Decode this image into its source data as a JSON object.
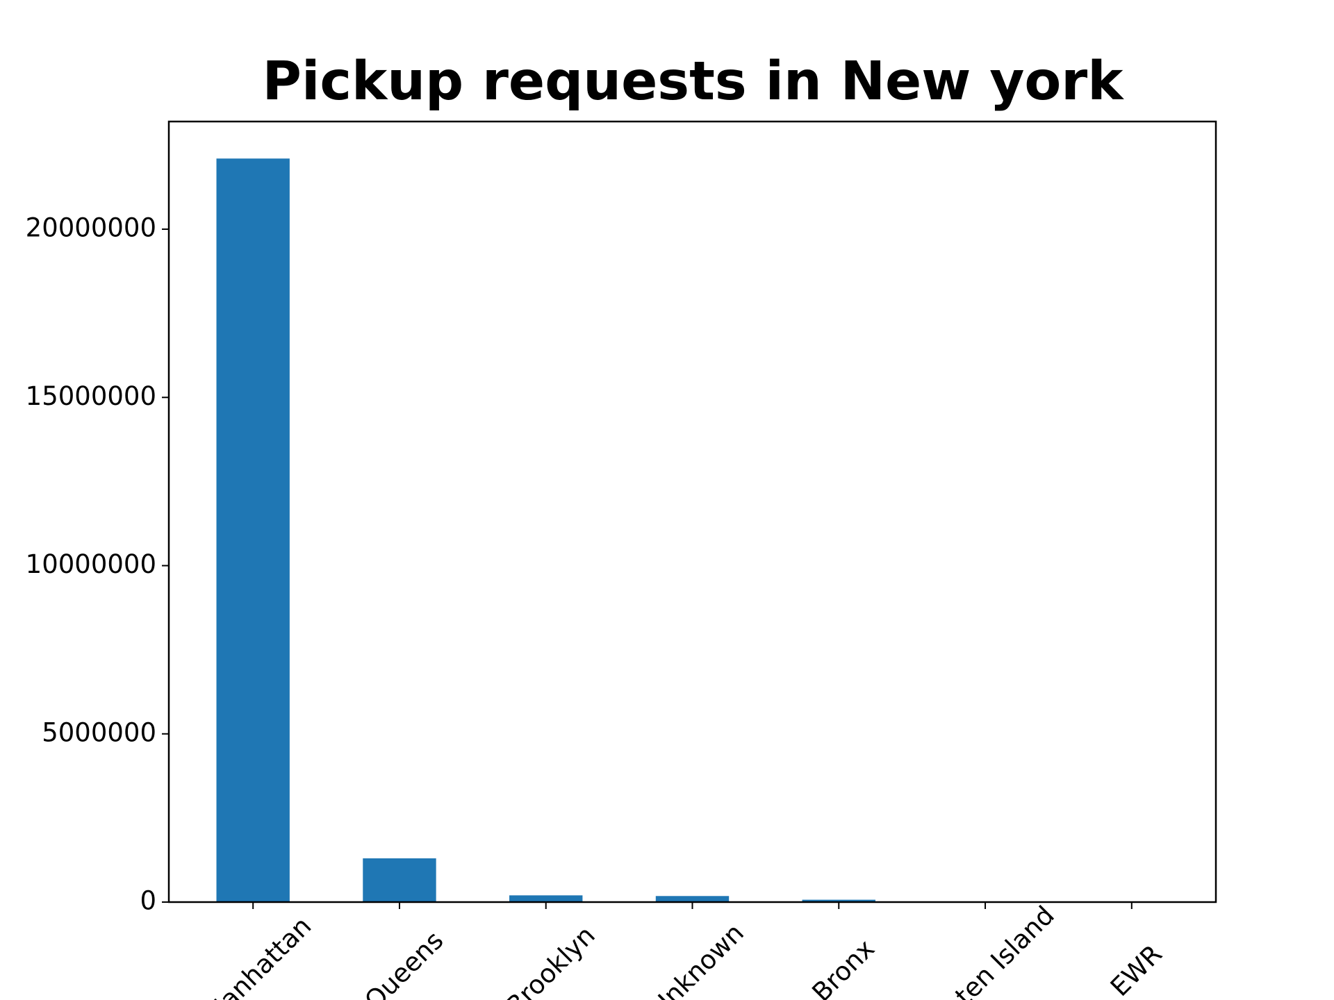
{
  "chart_data": {
    "type": "bar",
    "title": "Pickup requests in New york",
    "categories": [
      "Manhattan",
      "Queens",
      "Brooklyn",
      "Unknown",
      "Bronx",
      "Staten Island",
      "EWR"
    ],
    "values": [
      22100000,
      1300000,
      200000,
      180000,
      70000,
      3000,
      100
    ],
    "color": "#1f77b4",
    "ylim": [
      0,
      23200000
    ],
    "yticks": [
      0,
      5000000,
      10000000,
      15000000,
      20000000
    ],
    "grid": false
  }
}
